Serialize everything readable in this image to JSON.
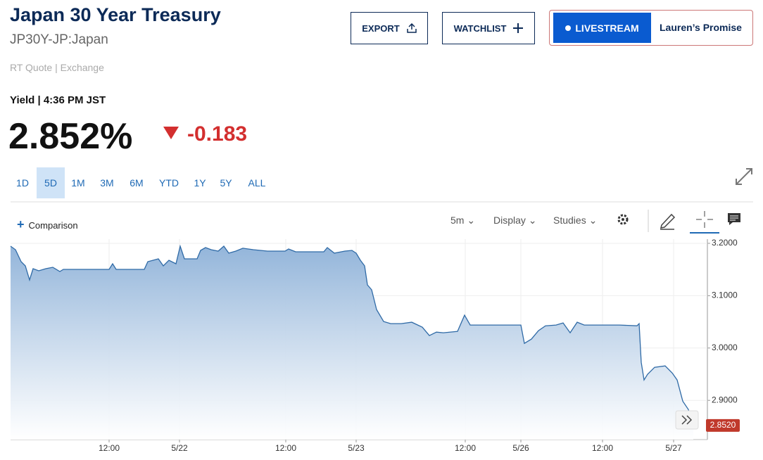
{
  "header": {
    "title": "Japan 30 Year Treasury",
    "symbol": "JP30Y-JP:Japan",
    "quote_source": "RT Quote | Exchange"
  },
  "buttons": {
    "export": "EXPORT",
    "watchlist": "WATCHLIST",
    "livestream": "LIVESTREAM",
    "promo": "Lauren’s Promise"
  },
  "quote": {
    "label": "Yield | 4:36 PM JST",
    "price": "2.852%",
    "change": "-0.183"
  },
  "ranges": [
    "1D",
    "5D",
    "1M",
    "3M",
    "6M",
    "YTD",
    "1Y",
    "5Y",
    "ALL"
  ],
  "active_range": "5D",
  "toolbar": {
    "comparison": "Comparison",
    "interval": "5m",
    "display": "Display",
    "studies": "Studies"
  },
  "chart_data": {
    "type": "area",
    "color": "#2f6aa6",
    "x": [
      0,
      7,
      15,
      21,
      27,
      32,
      40,
      50,
      60,
      70,
      75,
      105,
      140,
      145,
      150,
      190,
      195,
      210,
      217,
      225,
      235,
      241,
      247,
      255,
      265,
      270,
      277,
      285,
      295,
      303,
      310,
      320,
      330,
      345,
      365,
      380,
      390,
      395,
      405,
      425,
      445,
      450,
      460,
      475,
      485,
      491,
      497,
      503,
      507,
      513,
      520,
      530,
      540,
      555,
      570,
      585,
      595,
      605,
      615,
      635,
      645,
      653,
      685,
      725,
      730,
      740,
      750,
      760,
      775,
      785,
      795,
      805,
      815,
      835,
      865,
      890,
      893,
      896,
      900,
      905,
      915,
      930,
      940,
      947,
      955,
      963,
      970
    ],
    "values": [
      3.1946,
      3.1879,
      3.165,
      3.1569,
      3.13,
      3.1515,
      3.1475,
      3.1515,
      3.1542,
      3.1462,
      3.1502,
      3.1502,
      3.1502,
      3.161,
      3.1502,
      3.1502,
      3.165,
      3.1704,
      3.1569,
      3.1677,
      3.161,
      3.1946,
      3.1704,
      3.1704,
      3.1704,
      3.1865,
      3.1919,
      3.1879,
      3.1852,
      3.1946,
      3.1812,
      3.1852,
      3.1906,
      3.1879,
      3.1852,
      3.1852,
      3.1852,
      3.1892,
      3.1838,
      3.1838,
      3.1838,
      3.1919,
      3.1812,
      3.1852,
      3.1865,
      3.1812,
      3.1677,
      3.1569,
      3.1206,
      3.1112,
      3.0735,
      3.0506,
      3.0466,
      3.0466,
      3.0493,
      3.0398,
      3.0237,
      3.0304,
      3.0291,
      3.0318,
      3.0627,
      3.0439,
      3.0439,
      3.0439,
      3.0089,
      3.017,
      3.0331,
      3.0425,
      3.0439,
      3.0479,
      3.0291,
      3.0493,
      3.0439,
      3.0439,
      3.0439,
      3.0425,
      3.0466,
      2.9725,
      2.9389,
      2.9497,
      2.9631,
      2.9658,
      2.9523,
      2.9389,
      2.8985,
      2.8824,
      2.852
    ],
    "xlim": [
      0,
      990
    ],
    "ylim": [
      2.825,
      3.208
    ],
    "xticks": [
      {
        "value": 140,
        "label": "12:00"
      },
      {
        "value": 240,
        "label": "5/22"
      },
      {
        "value": 391,
        "label": "12:00"
      },
      {
        "value": 491,
        "label": "5/23"
      },
      {
        "value": 646,
        "label": "12:00"
      },
      {
        "value": 725,
        "label": "5/26"
      },
      {
        "value": 841,
        "label": "12:00"
      },
      {
        "value": 942,
        "label": "5/27"
      }
    ],
    "yticks": [
      {
        "value": 3.2,
        "label": "3.2000"
      },
      {
        "value": 3.1,
        "label": "3.1000"
      },
      {
        "value": 3.0,
        "label": "3.0000"
      },
      {
        "value": 2.9,
        "label": "2.9000"
      }
    ],
    "last_value": {
      "value": 2.852,
      "label": "2.8520"
    },
    "grid": true
  }
}
